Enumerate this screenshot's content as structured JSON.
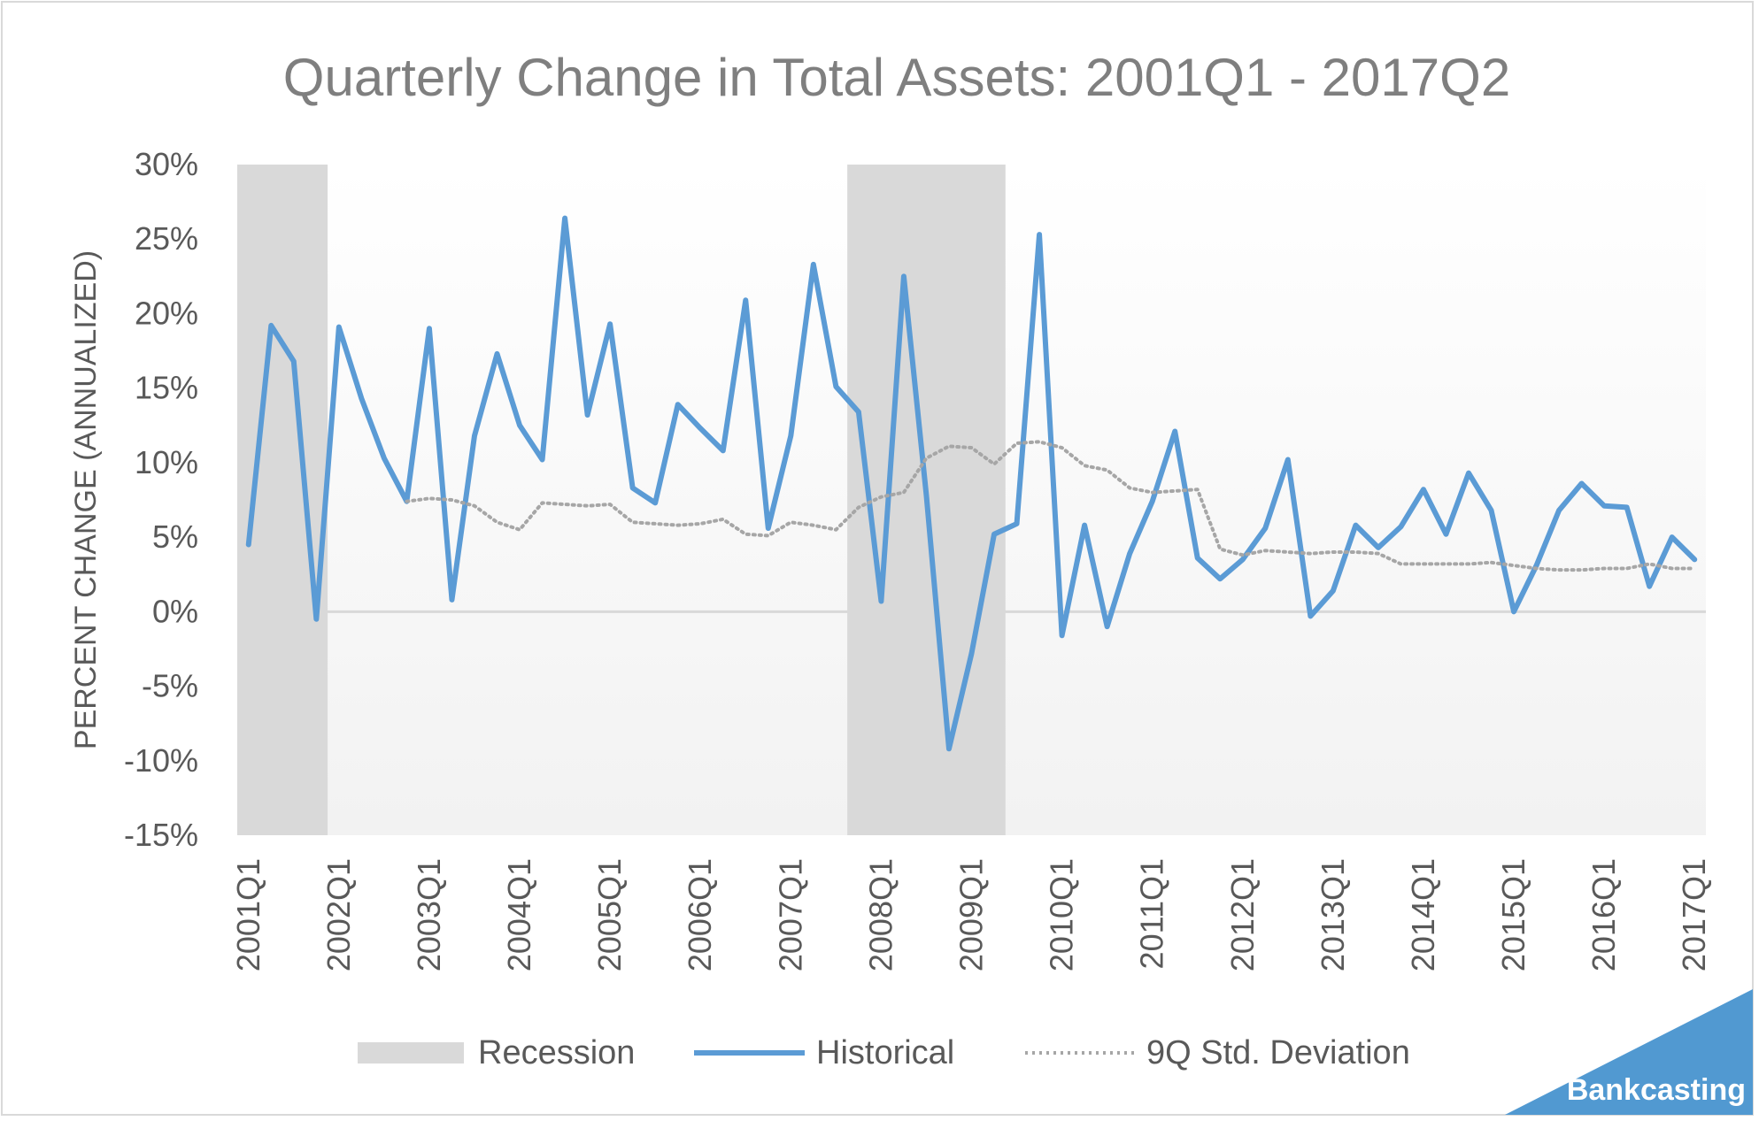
{
  "chart_data": {
    "type": "line",
    "title": "Quarterly Change in Total Assets: 2001Q1 - 2017Q2",
    "xlabel": "",
    "ylabel": "PERCENT CHANGE (ANNUALIZED)",
    "ylim": [
      -15,
      30
    ],
    "y_ticks": [
      30,
      25,
      20,
      15,
      10,
      5,
      0,
      -5,
      -10,
      -15
    ],
    "y_tick_labels": [
      "30%",
      "25%",
      "20%",
      "15%",
      "10%",
      "5%",
      "0%",
      "-5%",
      "-10%",
      "-15%"
    ],
    "x_tick_labels": [
      "2001Q1",
      "2002Q1",
      "2003Q1",
      "2004Q1",
      "2005Q1",
      "2006Q1",
      "2007Q1",
      "2008Q1",
      "2009Q1",
      "2010Q1",
      "2011Q1",
      "2012Q1",
      "2013Q1",
      "2014Q1",
      "2015Q1",
      "2016Q1",
      "2017Q1"
    ],
    "legend": {
      "placement": "bottom",
      "recession_label": "Recession",
      "historical_label": "Historical",
      "std_label": "9Q Std. Deviation"
    },
    "recessions": [
      {
        "start": "2001Q1",
        "end": "2001Q4"
      },
      {
        "start": "2007Q4",
        "end": "2009Q2"
      }
    ],
    "series": [
      {
        "name": "Historical",
        "color": "#5b9bd5",
        "style": "solid",
        "values": [
          4.5,
          19.2,
          16.8,
          -0.5,
          19.1,
          14.3,
          10.3,
          7.4,
          19.0,
          0.8,
          11.8,
          17.3,
          12.5,
          10.2,
          26.4,
          13.2,
          19.3,
          8.3,
          7.3,
          13.9,
          12.3,
          10.8,
          20.9,
          5.6,
          11.8,
          23.3,
          15.1,
          13.4,
          0.7,
          22.5,
          7.8,
          -9.2,
          -2.8,
          5.2,
          5.9,
          25.3,
          -1.6,
          5.8,
          -1.0,
          3.9,
          7.4,
          12.1,
          3.6,
          2.2,
          3.5,
          5.6,
          10.2,
          -0.3,
          1.4,
          5.8,
          4.3,
          5.7,
          8.2,
          5.2,
          9.3,
          6.8,
          0.0,
          3.1,
          6.8,
          8.6,
          7.1,
          7.0,
          1.7,
          5.0,
          3.5
        ]
      },
      {
        "name": "9Q Std. Deviation",
        "color": "#a6a6a6",
        "style": "dotted",
        "values": [
          null,
          null,
          null,
          null,
          null,
          null,
          null,
          7.4,
          7.6,
          7.5,
          7.1,
          6.0,
          5.5,
          7.3,
          7.2,
          7.1,
          7.2,
          6.0,
          5.9,
          5.8,
          5.9,
          6.2,
          5.2,
          5.1,
          6.0,
          5.8,
          5.5,
          7.0,
          7.7,
          8.0,
          10.3,
          11.1,
          11.0,
          9.9,
          11.3,
          11.4,
          11.0,
          9.8,
          9.5,
          8.3,
          8.0,
          8.1,
          8.2,
          4.2,
          3.8,
          4.1,
          4.0,
          3.9,
          4.0,
          4.0,
          3.9,
          3.2,
          3.2,
          3.2,
          3.2,
          3.3,
          3.1,
          2.9,
          2.8,
          2.8,
          2.9,
          2.9,
          3.2,
          2.9,
          2.9
        ]
      }
    ]
  },
  "branding": {
    "label": "Bankcasting",
    "color": "#5199d1"
  }
}
